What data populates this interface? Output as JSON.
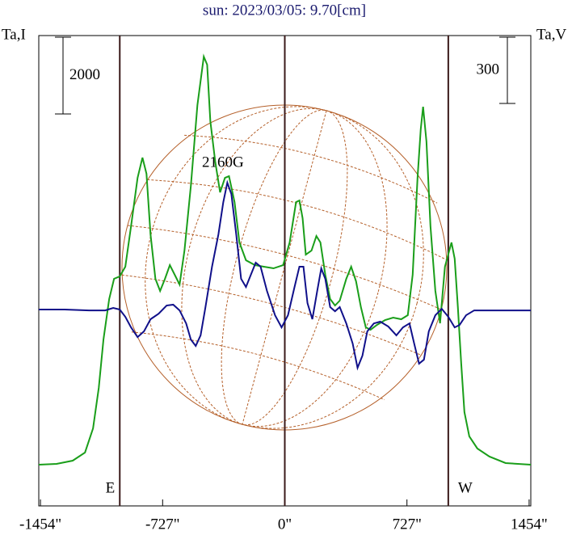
{
  "chart_data": {
    "type": "line",
    "title": "sun: 2023/03/05: 9.70[cm]",
    "xlim": [
      -1464,
      1464
    ],
    "xticks": [
      {
        "value": -1454,
        "label": "-1454\""
      },
      {
        "value": -727,
        "label": "-727\""
      },
      {
        "value": 0,
        "label": "0\""
      },
      {
        "value": 727,
        "label": "727\""
      },
      {
        "value": 1454,
        "label": "1454\""
      }
    ],
    "ylim": [
      -1074,
      11179
    ],
    "y2lim": [
      -885,
      1244
    ],
    "i_scale_bar": 2000,
    "v_scale_bar": 300,
    "vlines": [
      -982,
      0,
      973
    ],
    "vline_labels": [
      "E",
      null,
      "W"
    ],
    "annotation": "2160G",
    "series": [
      {
        "name": "Ta,I",
        "color": "#1a9e1a",
        "x": [
          -1464,
          -1358,
          -1262,
          -1189,
          -1141,
          -1107,
          -1079,
          -1045,
          -1016,
          -982,
          -949,
          -915,
          -876,
          -847,
          -823,
          -799,
          -770,
          -742,
          -713,
          -684,
          -655,
          -626,
          -597,
          -559,
          -520,
          -482,
          -462,
          -443,
          -414,
          -385,
          -356,
          -332,
          -299,
          -270,
          -231,
          -178,
          -125,
          -67,
          -10,
          29,
          67,
          87,
          106,
          125,
          159,
          188,
          212,
          241,
          270,
          299,
          327,
          366,
          395,
          424,
          453,
          482,
          510,
          549,
          597,
          645,
          693,
          732,
          761,
          790,
          809,
          823,
          843,
          867,
          896,
          924,
          953,
          992,
          1011,
          1030,
          1050,
          1069,
          1098,
          1146,
          1218,
          1314,
          1464
        ],
        "values": [
          0,
          21,
          105,
          316,
          947,
          2000,
          3263,
          4315,
          4842,
          4905,
          5157,
          6210,
          7473,
          7999,
          7578,
          5999,
          4842,
          4526,
          4842,
          5199,
          4947,
          4694,
          5578,
          7262,
          9367,
          10630,
          10420,
          8946,
          7894,
          7094,
          7473,
          7515,
          6841,
          5789,
          5326,
          5199,
          5157,
          5115,
          5199,
          5789,
          6841,
          6883,
          6420,
          5473,
          5578,
          5957,
          5789,
          4947,
          4315,
          4147,
          4273,
          4842,
          5157,
          4778,
          4105,
          3579,
          3515,
          3642,
          3768,
          3831,
          3789,
          3894,
          4947,
          7473,
          8736,
          9325,
          8420,
          6210,
          4526,
          3684,
          5157,
          5789,
          5368,
          4105,
          2631,
          1368,
          737,
          421,
          211,
          42,
          0
        ]
      },
      {
        "name": "Ta,V",
        "color": "#10108a",
        "axis": "y2",
        "x": [
          -1464,
          -1310,
          -1165,
          -1069,
          -1021,
          -982,
          -949,
          -915,
          -876,
          -838,
          -799,
          -751,
          -703,
          -664,
          -626,
          -587,
          -559,
          -530,
          -501,
          -472,
          -433,
          -395,
          -366,
          -342,
          -318,
          -289,
          -260,
          -231,
          -202,
          -173,
          -144,
          -106,
          -58,
          -19,
          19,
          58,
          87,
          111,
          135,
          164,
          193,
          217,
          241,
          270,
          299,
          327,
          366,
          404,
          433,
          462,
          491,
          530,
          568,
          616,
          664,
          703,
          742,
          770,
          799,
          828,
          857,
          896,
          934,
          973,
          1011,
          1040,
          1079,
          1127,
          1242,
          1464
        ],
        "values": [
          4,
          4,
          0,
          0,
          11,
          4,
          -29,
          -77,
          -121,
          -95,
          -40,
          -15,
          22,
          26,
          0,
          -59,
          -132,
          -161,
          -113,
          15,
          198,
          344,
          490,
          578,
          527,
          344,
          143,
          106,
          161,
          216,
          198,
          88,
          -22,
          -77,
          -22,
          106,
          198,
          198,
          33,
          -40,
          88,
          190,
          143,
          15,
          -4,
          15,
          -59,
          -150,
          -260,
          -205,
          -95,
          -59,
          -51,
          -73,
          -113,
          -77,
          -59,
          -150,
          -241,
          -223,
          -95,
          -22,
          7,
          -29,
          -77,
          -66,
          -22,
          0,
          0,
          0
        ]
      }
    ]
  }
}
